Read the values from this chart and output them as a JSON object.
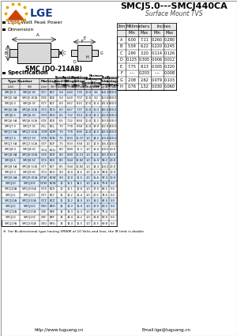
{
  "title": "SMCJ5.0---SMCJ440CA",
  "subtitle": "Surface Mount TVS",
  "features": [
    "1500 Watt Peak Power",
    "Dimension"
  ],
  "package": "SMC (DO-214AB)",
  "dim_data": [
    [
      "A",
      "6.00",
      "7.11",
      "0.260",
      "0.280"
    ],
    [
      "B",
      "5.59",
      "6.22",
      "0.220",
      "0.245"
    ],
    [
      "C",
      "2.90",
      "3.20",
      "0.114",
      "0.126"
    ],
    [
      "D",
      "0.125",
      "0.305",
      "0.006",
      "0.012"
    ],
    [
      "E",
      "7.75",
      "8.13",
      "0.305",
      "0.320"
    ],
    [
      "F",
      "----",
      "0.203",
      "----",
      "0.008"
    ],
    [
      "G",
      "2.08",
      "2.62",
      "0.079",
      "0.103"
    ],
    [
      "H",
      "0.76",
      "1.52",
      "0.030",
      "0.060"
    ]
  ],
  "spec_data": [
    [
      "SMCJ5.0",
      "SMCJ5.0C",
      "GCC",
      "BCC",
      "5.0",
      "6.40",
      "7.35",
      "10.0",
      "9.6",
      "156.3",
      "800.0"
    ],
    [
      "SMCJ5.0A",
      "SMCJ5.0CA",
      "GCK",
      "BCE",
      "5.0",
      "6.40",
      "7.07",
      "10.0",
      "9.2",
      "163.0",
      "800.0"
    ],
    [
      "SMCJ6.0",
      "SMCJ6.0C",
      "GCY",
      "BCF",
      "6.0",
      "6.67",
      "8.15",
      "10.0",
      "11.4",
      "131.6",
      "800.0"
    ],
    [
      "SMCJ6.0A",
      "SMCJ6.0CA",
      "GCG",
      "BCG",
      "6.0",
      "6.67",
      "7.37",
      "10.0",
      "10.3",
      "145.6",
      "800.0"
    ],
    [
      "SMCJ6.5",
      "SMCJ6.5C",
      "GCH",
      "BCH",
      "6.5",
      "7.22",
      "9.14",
      "10.0",
      "12.3",
      "122.0",
      "500.0"
    ],
    [
      "SMCJ6.5A",
      "SMCJ6.5CA",
      "GCK",
      "BCK",
      "6.5",
      "7.22",
      "8.50",
      "10.0",
      "11.2",
      "133.9",
      "500.0"
    ],
    [
      "SMCJ7.0",
      "SMCJ7.0C",
      "GCL",
      "BCL",
      "7.0",
      "7.78",
      "9.58",
      "10.0",
      "13.9",
      "112.9",
      "200.0"
    ],
    [
      "SMCJ7.0A",
      "SMCJ7.0CA",
      "GCM",
      "BCM",
      "7.0",
      "7.78",
      "8.95",
      "10.0",
      "12.0",
      "125.0",
      "200.0"
    ],
    [
      "SMCJ7.5",
      "SMCJ7.5C",
      "GCN",
      "BCN",
      "7.5",
      "8.33",
      "10.37",
      "1.0",
      "14.5",
      "103.4",
      "100.0"
    ],
    [
      "SMCJ7.5A",
      "SMCJ7.5CA",
      "GCP",
      "BCP",
      "7.5",
      "8.33",
      "9.58",
      "1.0",
      "12.9",
      "116.3",
      "100.0"
    ],
    [
      "SMCJ8.0",
      "SMCJ8.0C",
      "GCQ",
      "BCQ",
      "8.0",
      "8.89",
      "11.3",
      "1.0",
      "15.0",
      "100.0",
      "50.0"
    ],
    [
      "SMCJ8.0A",
      "SMCJ8.0CA",
      "GCR",
      "BCR",
      "8.0",
      "8.89",
      "10.23",
      "1.0",
      "13.6",
      "110.3",
      "50.0"
    ],
    [
      "SMCJ8.5",
      "SMCJ8.5C",
      "GCS",
      "BCS",
      "8.5",
      "9.44",
      "11.82",
      "1.0",
      "15.9",
      "94.3",
      "20.0"
    ],
    [
      "SMCJ8.5A",
      "SMCJ8.5CA",
      "GCT",
      "BCT",
      "8.5",
      "9.44",
      "10.82",
      "1.0",
      "14.4",
      "104.2",
      "20.0"
    ],
    [
      "SMCJ9.0",
      "SMCJ9.0C",
      "GCU",
      "BCU",
      "9.0",
      "10.0",
      "12.6",
      "1.0",
      "15.9",
      "98.8",
      "10.0"
    ],
    [
      "SMCJ9.0A",
      "SMCJ9.0CA",
      "GCW",
      "BCW",
      "9.0",
      "10.0",
      "11.5",
      "1.0",
      "15.6",
      "97.4",
      "10.0"
    ],
    [
      "SMCJ10",
      "SMCJ10C",
      "GCW",
      "BCW",
      "10",
      "11.1",
      "14.1",
      "1.0",
      "18.8",
      "79.8",
      "5.0"
    ],
    [
      "SMCJ10A",
      "SMCJ10CA",
      "GCX",
      "BCX",
      "10",
      "11.1",
      "12.8",
      "1.0",
      "17.0",
      "88.2",
      "5.0"
    ],
    [
      "SMCJ11",
      "SMCJ11C",
      "GCY",
      "BCY",
      "11",
      "12.2",
      "15.4",
      "1.0",
      "20.1",
      "74.6",
      "5.0"
    ],
    [
      "SMCJ11A",
      "SMCJ11CA",
      "GCZ",
      "BCZ",
      "11",
      "12.2",
      "14.0",
      "1.0",
      "18.2",
      "82.4",
      "5.0"
    ],
    [
      "SMCJ12",
      "SMCJ12C",
      "GEO",
      "BEO",
      "12",
      "13.3",
      "16.9",
      "1.0",
      "22.0",
      "68.2",
      "5.0"
    ],
    [
      "SMCJ12A",
      "SMCJ12CA",
      "GEE",
      "BEE",
      "12",
      "13.3",
      "15.3",
      "1.0",
      "19.9",
      "75.4",
      "5.0"
    ],
    [
      "SMCJ13",
      "SMCJ13C",
      "GEF",
      "BEF",
      "13",
      "14.4",
      "18.2",
      "1.0",
      "23.8",
      "63.0",
      "5.0"
    ],
    [
      "SMCJ13A",
      "SMCJ13CA",
      "GEG",
      "BEG",
      "13",
      "14.4",
      "16.5",
      "1.0",
      "21.5",
      "69.8",
      "5.0"
    ]
  ],
  "multi_hdrs": [
    "Type Number",
    "",
    "Marking",
    "",
    "Reverse\nStand-Off\nVoltage",
    "Breakdown\nVoltage\nMin. @It",
    "Breakdown\nVoltage\nMax. @It",
    "Test\nCurrent",
    "Maximum\nClamping\nVoltage\n@Ipp",
    "Peak\nPulse\nCurrent",
    "Reverse\nLeakage\n@VRwm"
  ],
  "sub_hdrs": [
    "(Uni)",
    "(Bi)",
    "(Uni)",
    "(Bi)",
    "Vrwm(V)",
    "Vbr min(V)",
    "Vbr max(V)",
    "It (mA)",
    "Vc(V)",
    "Ipp(A)",
    "IR(uA)"
  ],
  "footnote": "※  For Bi-directional type having VRWM of 10 Volts and less, the IR limit is double",
  "website": "http://www.luguang.cn",
  "email": "Email:lge@luguang.cn",
  "bg_color": "#ffffff",
  "logo_triangle_color": "#cc4400",
  "logo_dots_color": "#f0a000",
  "logo_text_color": "#1a3a8a",
  "highlight_even": "#ddeeff",
  "highlight_odd": "#ffffff",
  "header_bg": "#e8e8e8"
}
